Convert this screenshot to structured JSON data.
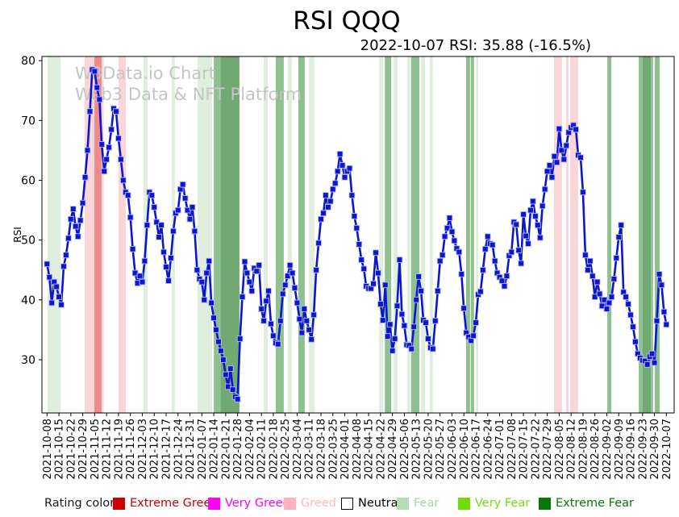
{
  "header": {
    "title": "RSI QQQ",
    "subtitle": "2022-10-07 RSI: 35.88 (-16.5%)"
  },
  "watermark": {
    "line1": "W3Data.io Chart",
    "line2": "Web3 Data & NFT Platform"
  },
  "legend": {
    "title": "Rating color",
    "items": [
      {
        "label": "Extreme Greed",
        "swatch": "#cc0000",
        "swatch_border": "#cc0000",
        "text_color": "#cc0000"
      },
      {
        "label": "Very Greed",
        "swatch": "#ff00ff",
        "swatch_border": "#ff00ff",
        "text_color": "#ff00ff"
      },
      {
        "label": "Greed",
        "swatch": "#ffb3ba",
        "swatch_border": "#ffb3ba",
        "text_color": "#ffb9c0"
      },
      {
        "label": "Neutral",
        "swatch": "#ffffff",
        "swatch_border": "#000000",
        "text_color": "#000000"
      },
      {
        "label": "Fear",
        "swatch": "#b7dcb7",
        "swatch_border": "#b7dcb7",
        "text_color": "#abd2ab"
      },
      {
        "label": "Very Fear",
        "swatch": "#6fdc02",
        "swatch_border": "#6fdc02",
        "text_color": "#76dd12"
      },
      {
        "label": "Extreme Fear",
        "swatch": "#067806",
        "swatch_border": "#067806",
        "text_color": "#067806"
      }
    ]
  },
  "chart_data": {
    "type": "line",
    "title": "RSI QQQ",
    "subtitle": "2022-10-07 RSI: 35.88 (-16.5%)",
    "ylabel": "RSI",
    "yticks": [
      30,
      40,
      50,
      60,
      70,
      80
    ],
    "ylim": [
      21.1,
      80.7
    ],
    "grid": false,
    "legend_position": "bottom",
    "x_tick_labels": [
      "2021-10-08",
      "2021-10-15",
      "2021-10-22",
      "2021-10-29",
      "2021-11-05",
      "2021-11-12",
      "2021-11-19",
      "2021-11-26",
      "2021-12-03",
      "2021-12-10",
      "2021-12-17",
      "2021-12-24",
      "2021-12-31",
      "2022-01-07",
      "2022-01-14",
      "2022-01-21",
      "2022-01-28",
      "2022-02-04",
      "2022-02-11",
      "2022-02-18",
      "2022-02-25",
      "2022-03-04",
      "2022-03-11",
      "2022-03-18",
      "2022-03-25",
      "2022-04-01",
      "2022-04-08",
      "2022-04-15",
      "2022-04-22",
      "2022-04-29",
      "2022-05-06",
      "2022-05-13",
      "2022-05-20",
      "2022-05-27",
      "2022-06-03",
      "2022-06-10",
      "2022-06-17",
      "2022-06-24",
      "2022-07-01",
      "2022-07-08",
      "2022-07-15",
      "2022-07-22",
      "2022-07-29",
      "2022-08-05",
      "2022-08-12",
      "2022-08-19",
      "2022-08-26",
      "2022-09-02",
      "2022-09-09",
      "2022-09-16",
      "2022-09-23",
      "2022-09-30",
      "2022-10-07"
    ],
    "points_per_tick": 5,
    "series": [
      {
        "name": "RSI",
        "color": "#0a16cf",
        "marker": "square",
        "values": [
          46.0,
          43.8,
          39.5,
          43.0,
          42.2,
          40.5,
          39.2,
          45.6,
          47.5,
          50.3,
          53.5,
          55.2,
          52.3,
          50.6,
          53.3,
          56.2,
          60.5,
          65.0,
          71.5,
          78.5,
          78.2,
          75.5,
          73.5,
          66.0,
          61.5,
          63.5,
          65.5,
          68.5,
          72.0,
          71.5,
          67.0,
          63.5,
          60.0,
          58.0,
          57.5,
          53.8,
          48.5,
          44.5,
          42.8,
          44.0,
          43.0,
          46.5,
          52.5,
          58.0,
          57.5,
          55.5,
          53.0,
          50.5,
          52.5,
          48.0,
          45.5,
          43.2,
          47.0,
          51.5,
          54.5,
          55.0,
          58.5,
          59.3,
          57.0,
          55.0,
          53.5,
          55.5,
          51.5,
          45.0,
          43.5,
          43.0,
          40.0,
          44.5,
          46.5,
          39.5,
          37.0,
          35.0,
          33.0,
          31.5,
          30.0,
          27.5,
          25.5,
          28.5,
          25.0,
          23.8,
          23.4,
          33.5,
          40.5,
          46.4,
          44.5,
          43.0,
          41.5,
          45.3,
          44.8,
          45.8,
          38.5,
          36.5,
          39.8,
          41.5,
          36.0,
          34.0,
          32.8,
          32.6,
          36.5,
          41.0,
          42.5,
          44.0,
          45.8,
          44.5,
          42.0,
          39.5,
          36.8,
          34.5,
          38.5,
          36.5,
          35.0,
          33.4,
          37.5,
          45.0,
          49.5,
          53.5,
          54.5,
          57.5,
          55.5,
          56.5,
          58.5,
          59.5,
          61.5,
          64.4,
          62.5,
          60.5,
          61.5,
          62.0,
          57.5,
          54.0,
          52.0,
          49.3,
          46.7,
          45.2,
          42.3,
          41.9,
          41.9,
          42.7,
          47.9,
          44.5,
          39.3,
          36.6,
          42.5,
          33.9,
          35.9,
          31.5,
          33.5,
          39.0,
          46.7,
          37.6,
          35.7,
          32.5,
          32.4,
          31.8,
          35.5,
          40.0,
          43.9,
          41.5,
          36.6,
          36.2,
          33.5,
          32.0,
          31.8,
          36.5,
          41.5,
          46.5,
          47.5,
          50.6,
          52.0,
          53.7,
          51.4,
          49.9,
          48.6,
          48.0,
          44.3,
          38.6,
          34.5,
          33.8,
          33.2,
          34.0,
          36.2,
          40.9,
          41.4,
          45.0,
          48.5,
          50.6,
          49.4,
          49.2,
          46.5,
          44.5,
          43.8,
          43.2,
          42.3,
          44.0,
          47.4,
          48.0,
          53.0,
          52.6,
          48.3,
          46.1,
          54.3,
          50.7,
          49.4,
          55.0,
          56.5,
          54.0,
          52.5,
          50.4,
          55.7,
          58.5,
          61.5,
          62.5,
          60.5,
          64.0,
          63.0,
          68.6,
          65.0,
          63.5,
          65.8,
          68.0,
          68.8,
          69.2,
          68.5,
          64.2,
          63.8,
          58.0,
          47.5,
          45.0,
          46.5,
          44.0,
          40.5,
          43.0,
          41.0,
          39.0,
          40.0,
          38.5,
          39.5,
          40.5,
          43.5,
          47.0,
          50.5,
          52.5,
          41.3,
          40.5,
          39.3,
          37.5,
          35.5,
          33.0,
          31.0,
          30.3,
          29.9,
          29.8,
          29.2,
          30.5,
          31.0,
          29.5,
          36.5,
          44.3,
          42.5,
          38.0,
          35.88
        ]
      }
    ],
    "band_colors": {
      "extreme_greed": "#ef8a8a",
      "greed": "#fbd5d8",
      "fear": "#dfeedf",
      "extreme_fear": "#8fc08f",
      "extreme_fear_deep": "#72a872"
    },
    "bands": [
      {
        "start": 0.2,
        "end": 5.7,
        "rating": "fear"
      },
      {
        "start": 15.8,
        "end": 19.9,
        "rating": "greed"
      },
      {
        "start": 19.9,
        "end": 22.9,
        "rating": "extreme_greed"
      },
      {
        "start": 22.9,
        "end": 23.8,
        "rating": "greed"
      },
      {
        "start": 30.0,
        "end": 33.1,
        "rating": "greed"
      },
      {
        "start": 40.5,
        "end": 42.2,
        "rating": "fear"
      },
      {
        "start": 52.4,
        "end": 53.7,
        "rating": "fear"
      },
      {
        "start": 63.2,
        "end": 69.3,
        "rating": "fear"
      },
      {
        "start": 70.0,
        "end": 73.0,
        "rating": "extreme_fear"
      },
      {
        "start": 73.0,
        "end": 80.8,
        "rating": "extreme_fear_deep"
      },
      {
        "start": 91.0,
        "end": 92.7,
        "rating": "fear"
      },
      {
        "start": 96.0,
        "end": 99.4,
        "rating": "extreme_fear"
      },
      {
        "start": 101.1,
        "end": 102.8,
        "rating": "fear"
      },
      {
        "start": 105.5,
        "end": 108.2,
        "rating": "extreme_fear"
      },
      {
        "start": 110.0,
        "end": 112.3,
        "rating": "fear"
      },
      {
        "start": 139.4,
        "end": 141.1,
        "rating": "fear"
      },
      {
        "start": 141.8,
        "end": 144.5,
        "rating": "extreme_fear"
      },
      {
        "start": 145.5,
        "end": 147.2,
        "rating": "fear"
      },
      {
        "start": 151.2,
        "end": 152.9,
        "rating": "fear"
      },
      {
        "start": 152.9,
        "end": 156.3,
        "rating": "extreme_fear"
      },
      {
        "start": 157.0,
        "end": 158.7,
        "rating": "fear"
      },
      {
        "start": 160.7,
        "end": 162.0,
        "rating": "fear"
      },
      {
        "start": 175.9,
        "end": 177.6,
        "rating": "extreme_fear"
      },
      {
        "start": 177.9,
        "end": 179.3,
        "rating": "extreme_fear"
      },
      {
        "start": 180.0,
        "end": 181.0,
        "rating": "fear"
      },
      {
        "start": 212.8,
        "end": 216.2,
        "rating": "greed"
      },
      {
        "start": 217.9,
        "end": 218.9,
        "rating": "greed"
      },
      {
        "start": 219.6,
        "end": 223.0,
        "rating": "greed"
      },
      {
        "start": 235.2,
        "end": 236.9,
        "rating": "extreme_fear"
      },
      {
        "start": 248.4,
        "end": 250.0,
        "rating": "extreme_fear"
      },
      {
        "start": 250.0,
        "end": 253.5,
        "rating": "extreme_fear_deep"
      },
      {
        "start": 253.5,
        "end": 254.4,
        "rating": "extreme_fear"
      },
      {
        "start": 255.1,
        "end": 257.2,
        "rating": "extreme_fear"
      }
    ]
  }
}
